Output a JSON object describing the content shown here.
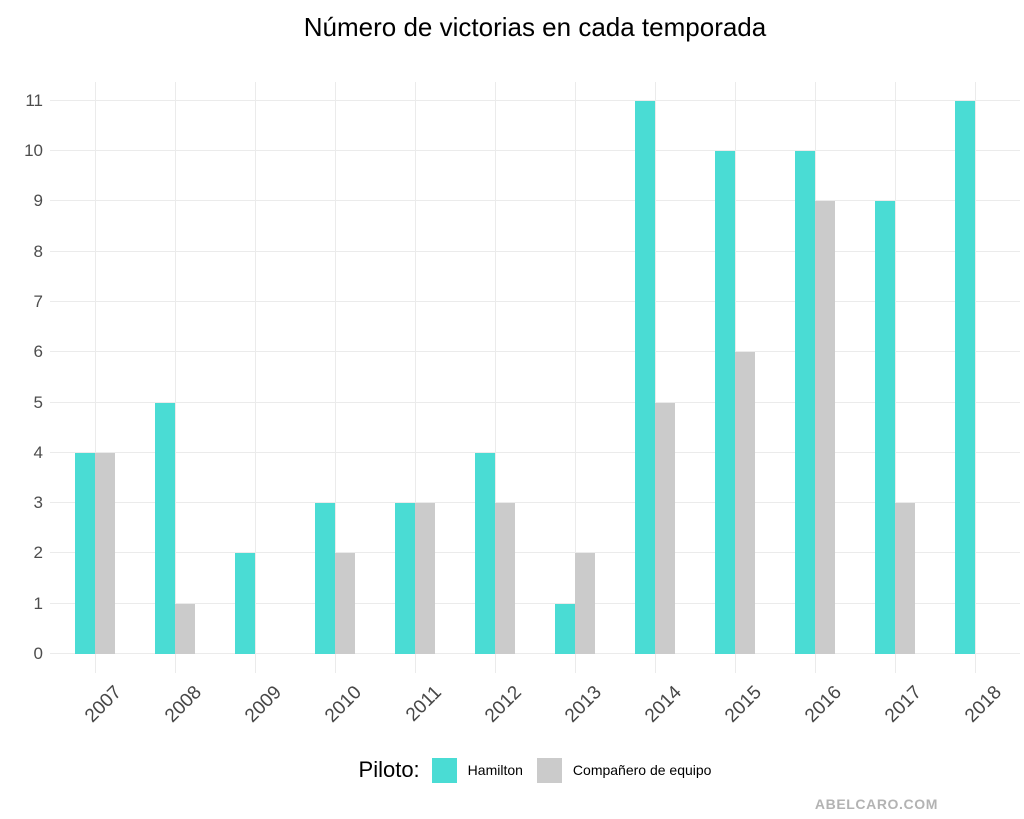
{
  "title": "Número de victorias en cada temporada",
  "watermark": "ABELCARO.COM",
  "legend": {
    "label": "Piloto:",
    "items": [
      {
        "key": "hamilton",
        "label": "Hamilton",
        "color": "#4ADCD4"
      },
      {
        "key": "teammate",
        "label": "Compañero de equipo",
        "color": "#CBCBCB"
      }
    ]
  },
  "chart_data": {
    "type": "bar",
    "title": "Número de victorias en cada temporada",
    "categories": [
      "2007",
      "2008",
      "2009",
      "2010",
      "2011",
      "2012",
      "2013",
      "2014",
      "2015",
      "2016",
      "2017",
      "2018"
    ],
    "series": [
      {
        "key": "hamilton",
        "name": "Hamilton",
        "color": "#4ADCD4",
        "values": [
          4,
          5,
          2,
          3,
          3,
          4,
          1,
          11,
          10,
          10,
          9,
          11
        ]
      },
      {
        "key": "teammate",
        "name": "Compañero de equipo",
        "color": "#CBCBCB",
        "values": [
          4,
          1,
          0,
          2,
          3,
          3,
          2,
          5,
          6,
          9,
          3,
          0
        ]
      }
    ],
    "xlabel": "",
    "ylabel": "",
    "ylim": [
      0,
      11
    ],
    "yticks": [
      0,
      1,
      2,
      3,
      4,
      5,
      6,
      7,
      8,
      9,
      10,
      11
    ],
    "grid": true,
    "legend_title": "Piloto:",
    "legend_position": "bottom",
    "colors": {
      "background": "#FFFFFF",
      "grid": "#EBEBEB",
      "tick_text": "#4D4D4D",
      "title_text": "#000000",
      "watermark_text": "#B3B3B3"
    }
  }
}
